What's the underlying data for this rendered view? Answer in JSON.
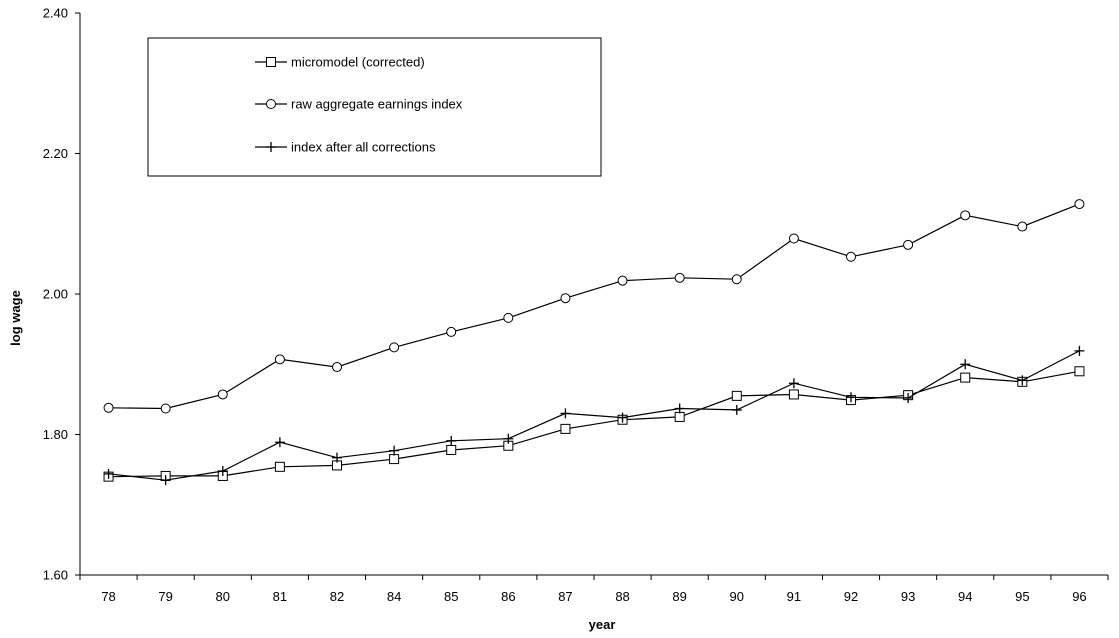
{
  "chart_data": {
    "type": "line",
    "title": "",
    "xlabel": "year",
    "ylabel": "log wage",
    "categories": [
      "78",
      "79",
      "80",
      "81",
      "82",
      "84",
      "85",
      "86",
      "87",
      "88",
      "89",
      "90",
      "91",
      "92",
      "93",
      "94",
      "95",
      "96"
    ],
    "ylim": [
      1.6,
      2.4
    ],
    "yticks": [
      "1.60",
      "1.80",
      "2.00",
      "2.20",
      "2.40"
    ],
    "grid": false,
    "legend_position": "top-left",
    "series": [
      {
        "name": "micromodel (corrected)",
        "marker": "square",
        "values": [
          1.74,
          1.741,
          1.741,
          1.754,
          1.756,
          1.765,
          1.778,
          1.784,
          1.808,
          1.821,
          1.825,
          1.855,
          1.857,
          1.849,
          1.856,
          1.881,
          1.875,
          1.89
        ]
      },
      {
        "name": "raw aggregate earnings index",
        "marker": "circle",
        "values": [
          1.838,
          1.837,
          1.857,
          1.907,
          1.896,
          1.924,
          1.946,
          1.966,
          1.994,
          2.019,
          2.023,
          2.021,
          2.079,
          2.053,
          2.07,
          2.112,
          2.096,
          2.128
        ]
      },
      {
        "name": "index after all corrections",
        "marker": "plus",
        "values": [
          1.744,
          1.735,
          1.748,
          1.789,
          1.767,
          1.777,
          1.791,
          1.794,
          1.83,
          1.824,
          1.837,
          1.835,
          1.873,
          1.853,
          1.852,
          1.9,
          1.877,
          1.919
        ]
      }
    ]
  }
}
